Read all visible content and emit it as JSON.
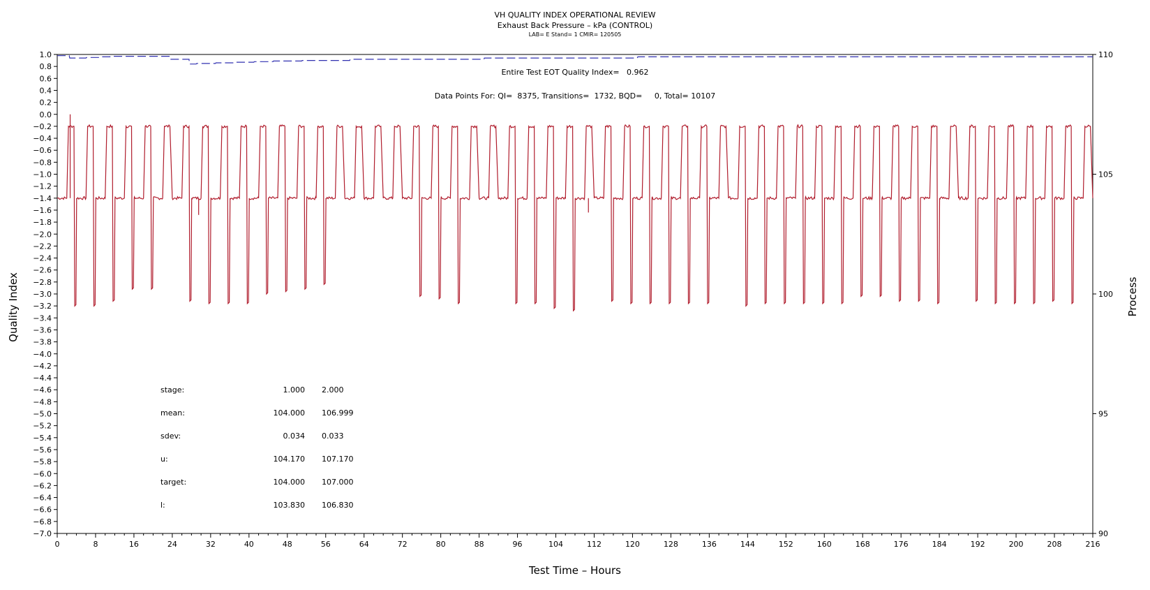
{
  "chart_data": {
    "type": "line",
    "title": "VH QUALITY INDEX OPERATIONAL REVIEW",
    "subtitle": "Exhaust Back Pressure – kPa (CONTROL)",
    "info_line": "LAB= E Stand= 1 CMIR= 120505",
    "xlabel": "Test Time – Hours",
    "ylabel_left": "Quality Index",
    "ylabel_right": "Process",
    "xlim": [
      0,
      216
    ],
    "ylim_left": [
      -7.0,
      1.0
    ],
    "ylim_right": [
      90,
      110
    ],
    "x_ticks": [
      "0",
      "8",
      "16",
      "24",
      "32",
      "40",
      "48",
      "56",
      "64",
      "72",
      "80",
      "88",
      "96",
      "104",
      "112",
      "120",
      "128",
      "136",
      "144",
      "152",
      "160",
      "168",
      "176",
      "184",
      "192",
      "200",
      "208",
      "216"
    ],
    "y_left_ticks": [
      "1.0",
      "0.8",
      "0.6",
      "0.4",
      "0.2",
      "0.0",
      "-0.2",
      "-0.4",
      "-0.6",
      "-0.8",
      "-1.0",
      "-1.2",
      "-1.4",
      "-1.6",
      "-1.8",
      "-2.0",
      "-2.2",
      "-2.4",
      "-2.6",
      "-2.8",
      "-3.0",
      "-3.2",
      "-3.4",
      "-3.6",
      "-3.8",
      "-4.0",
      "-4.2",
      "-4.4",
      "-4.6",
      "-4.8",
      "-5.0",
      "-5.2",
      "-5.4",
      "-5.6",
      "-5.8",
      "-6.0",
      "-6.2",
      "-6.4",
      "-6.6",
      "-6.8",
      "-7.0"
    ],
    "y_right_ticks": [
      "110",
      "105",
      "100",
      "95",
      "90"
    ],
    "annotations": {
      "eot_quality_index": "Entire Test EOT Quality Index=   0.962",
      "data_points": "Data Points For: QI=  8375, Transitions=  1732, BQD=     0, Total= 10107"
    },
    "stats_table": {
      "rows": [
        {
          "label": "stage:",
          "v1": "1.000",
          "v2": "2.000"
        },
        {
          "label": "mean:",
          "v1": "104.000",
          "v2": "106.999"
        },
        {
          "label": "sdev:",
          "v1": "0.034",
          "v2": "0.033"
        },
        {
          "label": "u:",
          "v1": "104.170",
          "v2": "107.170"
        },
        {
          "label": "target:",
          "v1": "104.000",
          "v2": "107.000"
        },
        {
          "label": "l:",
          "v1": "103.830",
          "v2": "106.830"
        }
      ]
    },
    "series": [
      {
        "axis": "left",
        "color": "#3030b0",
        "style": "dashed",
        "x": [
          0,
          2.5,
          2.6,
          6,
          6.1,
          9,
          9.1,
          11,
          11.1,
          23.5,
          23.6,
          27.5,
          27.6,
          29,
          29.1,
          33,
          33.1,
          37,
          37.1,
          41,
          41.1,
          45,
          45.1,
          51,
          51.1,
          61,
          61.1,
          89,
          89.1,
          121,
          121.1,
          216
        ],
        "values": [
          0.98,
          0.98,
          0.94,
          0.94,
          0.95,
          0.95,
          0.96,
          0.96,
          0.97,
          0.97,
          0.92,
          0.92,
          0.84,
          0.84,
          0.85,
          0.85,
          0.86,
          0.86,
          0.87,
          0.87,
          0.88,
          0.88,
          0.89,
          0.89,
          0.9,
          0.9,
          0.92,
          0.92,
          0.94,
          0.94,
          0.96,
          0.96
        ]
      },
      {
        "axis": "right",
        "color": "#b01c2c",
        "style": "solid",
        "cycle_period_hours": 4,
        "base_level": 104.0,
        "high_level": 107.0,
        "high_start_offset": 2.0,
        "low_start_offset": 3.5,
        "low_dips": [
          99.5,
          99.5,
          99.7,
          100.2,
          100.2,
          107.0,
          99.7,
          99.6,
          99.6,
          99.6,
          100.0,
          100.1,
          100.2,
          100.4,
          107.0,
          107.0,
          107.0,
          107.0,
          99.9,
          99.8,
          99.6,
          107.0,
          107.0,
          99.6,
          99.6,
          99.4,
          99.3,
          107.0,
          99.7,
          99.6,
          99.6,
          99.6,
          99.6,
          99.6,
          107.0,
          99.5,
          99.6,
          99.6,
          99.6,
          99.6,
          99.6,
          99.9,
          99.9,
          99.7,
          99.7,
          99.6,
          107.0,
          99.7,
          99.6,
          99.6,
          99.6,
          99.7,
          99.6,
          107.0
        ],
        "spikes": [
          [
            2.7,
            107.5
          ],
          [
            29.5,
            103.3
          ],
          [
            110.8,
            103.4
          ]
        ]
      }
    ]
  }
}
